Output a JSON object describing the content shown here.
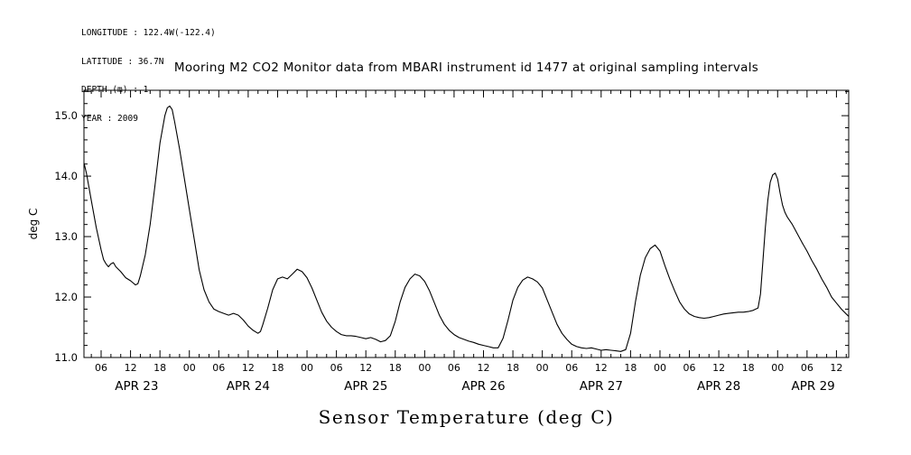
{
  "metadata": {
    "longitude": "LONGITUDE : 122.4W(-122.4)",
    "latitude": "LATITUDE : 36.7N",
    "depth": "DEPTH (m) : 1",
    "year": "YEAR : 2009"
  },
  "chart_data": {
    "type": "line",
    "title": "Mooring M2 CO2 Monitor data from MBARI instrument id 1477 at original sampling intervals",
    "caption": "Sensor Temperature (deg C)",
    "ylabel": "deg C",
    "line_color": "#000000",
    "background_color": "#ffffff",
    "grid": false,
    "legend": null,
    "ylim": [
      11.0,
      15.42
    ],
    "xlim_hours": [
      2.5,
      158.5
    ],
    "y_major_ticks": [
      11.0,
      12.0,
      13.0,
      14.0,
      15.0
    ],
    "y_minor_step": 0.2,
    "x_tick_step_hours": 6,
    "x_minor_step_hours": 2,
    "x_hour_label_cycle": [
      "06",
      "12",
      "18",
      "00"
    ],
    "day_labels": [
      "APR 23",
      "APR 24",
      "APR 25",
      "APR 26",
      "APR 27",
      "APR 28",
      "APR 29"
    ],
    "x_unit_note": "hours since APR 23 00:00",
    "points": [
      [
        2.5,
        14.22
      ],
      [
        3,
        14.05
      ],
      [
        4,
        13.6
      ],
      [
        5,
        13.15
      ],
      [
        6,
        12.78
      ],
      [
        6.5,
        12.62
      ],
      [
        7,
        12.55
      ],
      [
        7.5,
        12.5
      ],
      [
        8,
        12.55
      ],
      [
        8.5,
        12.57
      ],
      [
        9,
        12.5
      ],
      [
        10,
        12.42
      ],
      [
        11,
        12.32
      ],
      [
        12,
        12.27
      ],
      [
        13,
        12.2
      ],
      [
        13.5,
        12.22
      ],
      [
        14,
        12.35
      ],
      [
        15,
        12.7
      ],
      [
        16,
        13.2
      ],
      [
        17,
        13.85
      ],
      [
        18,
        14.55
      ],
      [
        19,
        15.0
      ],
      [
        19.5,
        15.13
      ],
      [
        20,
        15.16
      ],
      [
        20.5,
        15.1
      ],
      [
        21,
        14.9
      ],
      [
        22,
        14.45
      ],
      [
        23,
        13.95
      ],
      [
        24,
        13.45
      ],
      [
        25,
        12.95
      ],
      [
        26,
        12.45
      ],
      [
        27,
        12.12
      ],
      [
        28,
        11.92
      ],
      [
        29,
        11.8
      ],
      [
        30,
        11.76
      ],
      [
        31,
        11.73
      ],
      [
        32,
        11.7
      ],
      [
        33,
        11.73
      ],
      [
        34,
        11.7
      ],
      [
        35,
        11.62
      ],
      [
        36,
        11.52
      ],
      [
        37,
        11.45
      ],
      [
        38,
        11.4
      ],
      [
        38.5,
        11.43
      ],
      [
        39,
        11.55
      ],
      [
        40,
        11.82
      ],
      [
        41,
        12.12
      ],
      [
        42,
        12.3
      ],
      [
        43,
        12.33
      ],
      [
        44,
        12.3
      ],
      [
        45,
        12.38
      ],
      [
        46,
        12.46
      ],
      [
        47,
        12.42
      ],
      [
        48,
        12.32
      ],
      [
        49,
        12.15
      ],
      [
        50,
        11.95
      ],
      [
        51,
        11.75
      ],
      [
        52,
        11.6
      ],
      [
        53,
        11.5
      ],
      [
        54,
        11.43
      ],
      [
        55,
        11.38
      ],
      [
        56,
        11.36
      ],
      [
        57,
        11.36
      ],
      [
        58,
        11.35
      ],
      [
        59,
        11.33
      ],
      [
        60,
        11.31
      ],
      [
        61,
        11.33
      ],
      [
        62,
        11.3
      ],
      [
        63,
        11.26
      ],
      [
        64,
        11.28
      ],
      [
        65,
        11.36
      ],
      [
        66,
        11.6
      ],
      [
        67,
        11.92
      ],
      [
        68,
        12.16
      ],
      [
        69,
        12.3
      ],
      [
        70,
        12.38
      ],
      [
        71,
        12.35
      ],
      [
        72,
        12.26
      ],
      [
        73,
        12.1
      ],
      [
        74,
        11.9
      ],
      [
        75,
        11.7
      ],
      [
        76,
        11.55
      ],
      [
        77,
        11.45
      ],
      [
        78,
        11.38
      ],
      [
        79,
        11.33
      ],
      [
        80,
        11.3
      ],
      [
        81,
        11.27
      ],
      [
        82,
        11.25
      ],
      [
        83,
        11.22
      ],
      [
        84,
        11.2
      ],
      [
        85,
        11.18
      ],
      [
        86,
        11.16
      ],
      [
        87,
        11.16
      ],
      [
        88,
        11.32
      ],
      [
        89,
        11.62
      ],
      [
        90,
        11.95
      ],
      [
        91,
        12.16
      ],
      [
        92,
        12.28
      ],
      [
        93,
        12.33
      ],
      [
        94,
        12.3
      ],
      [
        95,
        12.25
      ],
      [
        96,
        12.15
      ],
      [
        97,
        11.95
      ],
      [
        98,
        11.75
      ],
      [
        99,
        11.55
      ],
      [
        100,
        11.4
      ],
      [
        101,
        11.3
      ],
      [
        102,
        11.22
      ],
      [
        103,
        11.18
      ],
      [
        104,
        11.16
      ],
      [
        105,
        11.15
      ],
      [
        106,
        11.16
      ],
      [
        107,
        11.14
      ],
      [
        108,
        11.12
      ],
      [
        109,
        11.13
      ],
      [
        110,
        11.12
      ],
      [
        111,
        11.11
      ],
      [
        112,
        11.1
      ],
      [
        113,
        11.13
      ],
      [
        114,
        11.4
      ],
      [
        115,
        11.92
      ],
      [
        116,
        12.36
      ],
      [
        117,
        12.65
      ],
      [
        118,
        12.8
      ],
      [
        119,
        12.86
      ],
      [
        120,
        12.76
      ],
      [
        121,
        12.52
      ],
      [
        122,
        12.3
      ],
      [
        123,
        12.1
      ],
      [
        124,
        11.92
      ],
      [
        125,
        11.8
      ],
      [
        126,
        11.72
      ],
      [
        127,
        11.68
      ],
      [
        128,
        11.66
      ],
      [
        129,
        11.65
      ],
      [
        130,
        11.66
      ],
      [
        131,
        11.68
      ],
      [
        132,
        11.7
      ],
      [
        133,
        11.72
      ],
      [
        134,
        11.73
      ],
      [
        135,
        11.74
      ],
      [
        136,
        11.75
      ],
      [
        137,
        11.75
      ],
      [
        138,
        11.76
      ],
      [
        139,
        11.78
      ],
      [
        140,
        11.82
      ],
      [
        140.5,
        12.05
      ],
      [
        141,
        12.6
      ],
      [
        141.5,
        13.15
      ],
      [
        142,
        13.6
      ],
      [
        142.5,
        13.9
      ],
      [
        143,
        14.02
      ],
      [
        143.5,
        14.05
      ],
      [
        144,
        13.95
      ],
      [
        144.5,
        13.72
      ],
      [
        145,
        13.52
      ],
      [
        145.5,
        13.4
      ],
      [
        146,
        13.32
      ],
      [
        147,
        13.2
      ],
      [
        148,
        13.05
      ],
      [
        149,
        12.9
      ],
      [
        150,
        12.76
      ],
      [
        151,
        12.6
      ],
      [
        152,
        12.46
      ],
      [
        153,
        12.3
      ],
      [
        154,
        12.16
      ],
      [
        155,
        12.0
      ],
      [
        156,
        11.9
      ],
      [
        157,
        11.8
      ],
      [
        158,
        11.72
      ],
      [
        158.5,
        11.68
      ]
    ]
  }
}
